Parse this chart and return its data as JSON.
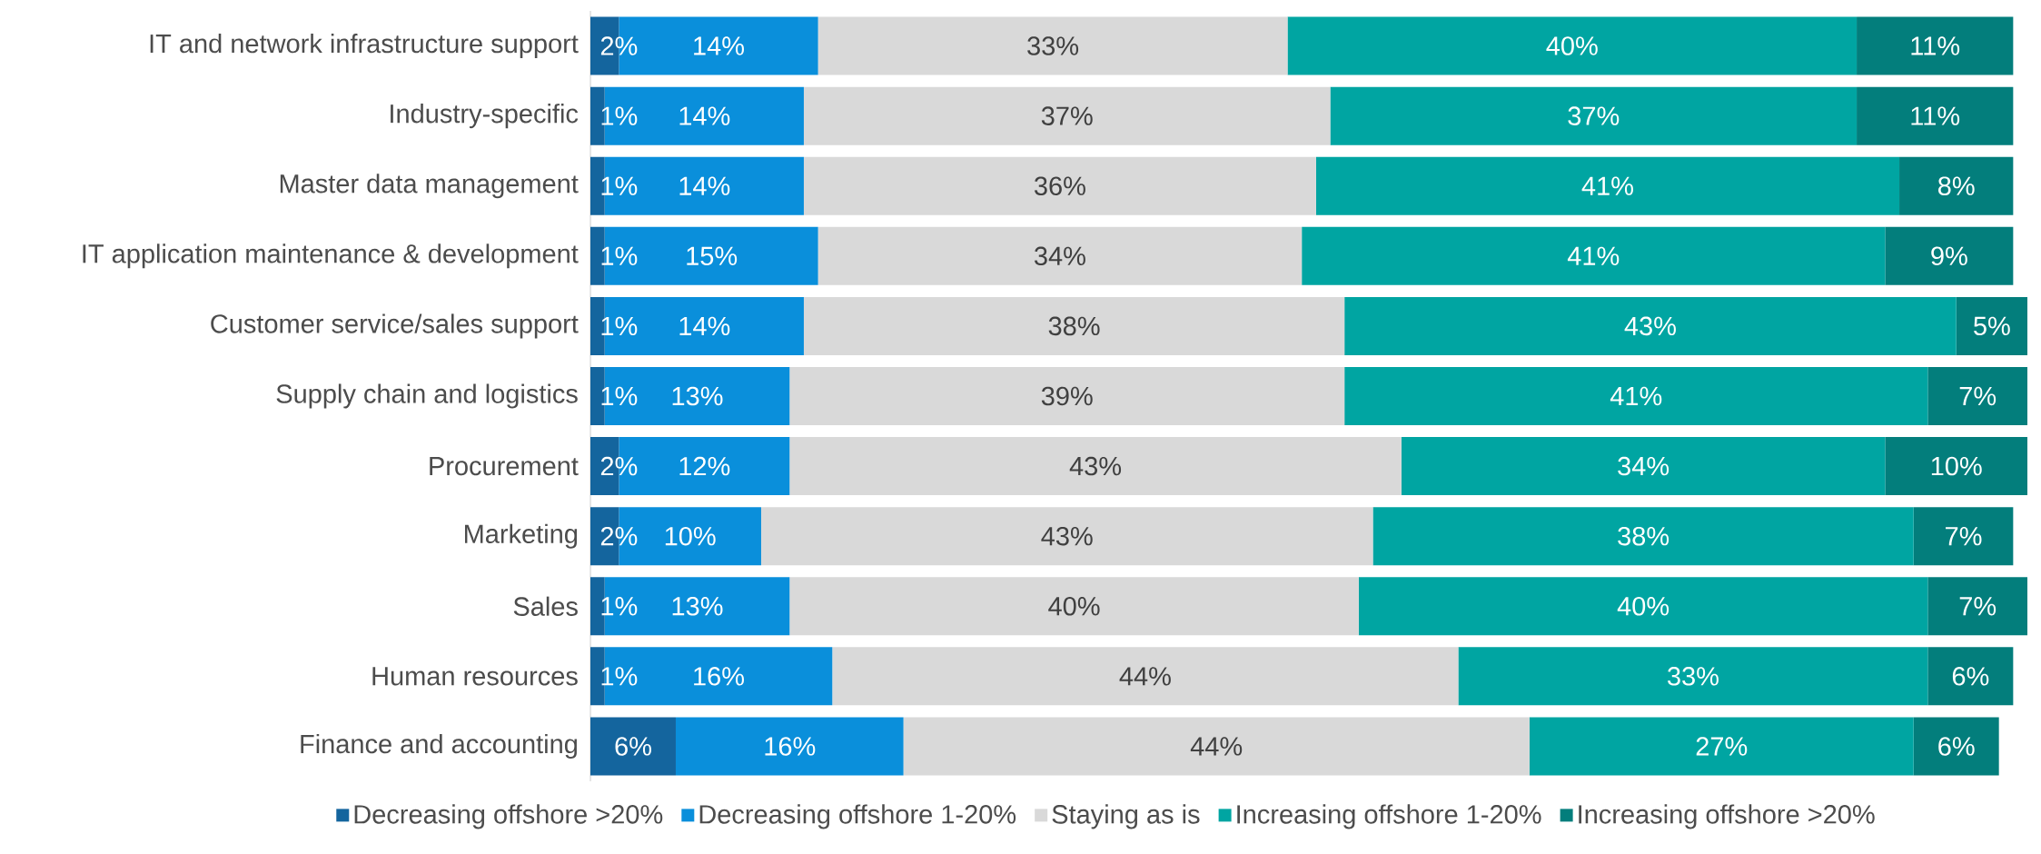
{
  "chart_data": {
    "type": "bar",
    "orientation": "horizontal",
    "stacked": true,
    "legend": "bottom",
    "categories": [
      "IT and network infrastructure support",
      "Industry-specific",
      "Master data management",
      "IT application maintenance & development",
      "Customer service/sales support",
      "Supply chain and logistics",
      "Procurement",
      "Marketing",
      "Sales",
      "Human resources",
      "Finance and accounting"
    ],
    "series": [
      {
        "name": "Decreasing offshore >20%",
        "color": "#14659e",
        "values": [
          2,
          1,
          1,
          1,
          1,
          1,
          2,
          2,
          1,
          1,
          6
        ],
        "value_labels": [
          "2%",
          "1%",
          "1%",
          "1%",
          "1%",
          "1%",
          "2%",
          "2%",
          "1%",
          "1%",
          "6%"
        ]
      },
      {
        "name": "Decreasing offshore 1-20%",
        "color": "#0a8fdb",
        "values": [
          14,
          14,
          14,
          15,
          14,
          13,
          12,
          10,
          13,
          16,
          16
        ],
        "value_labels": [
          "14%",
          "14%",
          "14%",
          "15%",
          "14%",
          "13%",
          "12%",
          "10%",
          "13%",
          "16%",
          "16%"
        ]
      },
      {
        "name": "Staying as is",
        "color": "#d9d9d9",
        "values": [
          33,
          37,
          36,
          34,
          38,
          39,
          43,
          43,
          40,
          44,
          44
        ],
        "value_labels": [
          "33%",
          "37%",
          "36%",
          "34%",
          "38%",
          "39%",
          "43%",
          "43%",
          "40%",
          "44%",
          "44%"
        ]
      },
      {
        "name": "Increasing offshore 1-20%",
        "color": "#00a5a2",
        "values": [
          40,
          37,
          41,
          41,
          43,
          41,
          34,
          38,
          40,
          33,
          27
        ],
        "value_labels": [
          "40%",
          "37%",
          "41%",
          "41%",
          "43%",
          "41%",
          "34%",
          "38%",
          "40%",
          "33%",
          "27%"
        ]
      },
      {
        "name": "Increasing offshore >20%",
        "color": "#037e7c",
        "values": [
          11,
          11,
          8,
          9,
          5,
          7,
          10,
          7,
          7,
          6,
          6
        ],
        "value_labels": [
          "11%",
          "11%",
          "8%",
          "9%",
          "5%",
          "7%",
          "10%",
          "7%",
          "7%",
          "6%",
          "6%"
        ]
      }
    ]
  }
}
